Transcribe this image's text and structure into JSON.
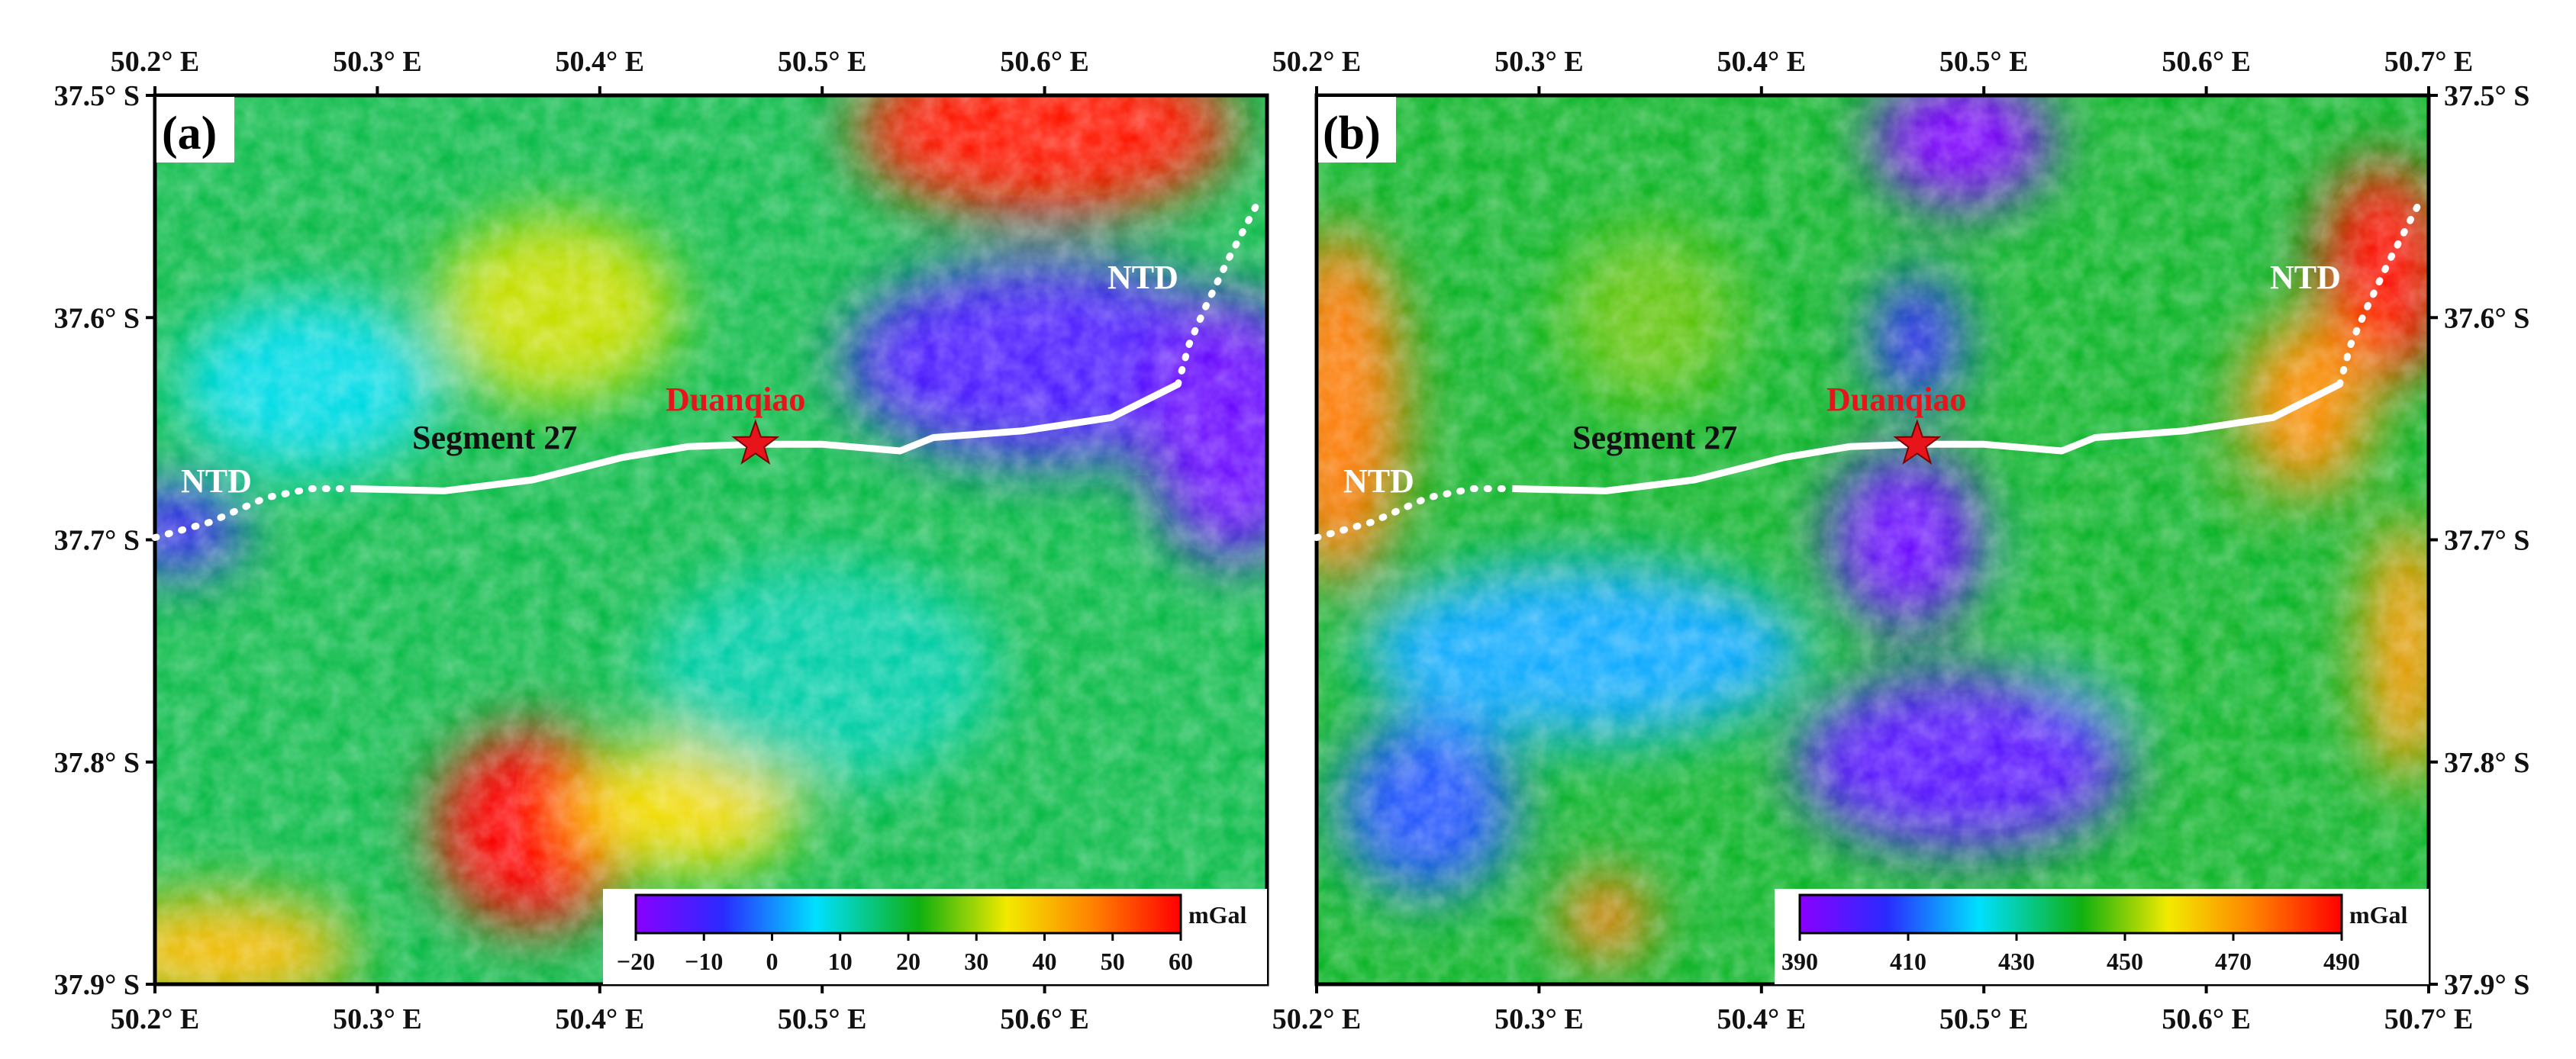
{
  "colors": {
    "fault": "#ffffff",
    "epicenter": "#e8141b",
    "epicenter_label": "#e8141b",
    "ntd_label": "#ffffff",
    "segment_label": "#111111",
    "colorbar_stops": [
      "#8a00ff",
      "#2a2aff",
      "#00e0ff",
      "#0fb010",
      "#f2ea00",
      "#ff8000",
      "#ff0000"
    ]
  },
  "map": {
    "lon_range": [
      50.2,
      50.7
    ],
    "lat_range": [
      37.5,
      37.9
    ],
    "lon_ticks": [
      50.2,
      50.3,
      50.4,
      50.5,
      50.6,
      50.7
    ],
    "lat_ticks": [
      37.5,
      37.6,
      37.7,
      37.8,
      37.9
    ],
    "fault_trace": [
      [
        50.288,
        37.677
      ],
      [
        50.33,
        37.678
      ],
      [
        50.37,
        37.673
      ],
      [
        50.41,
        37.663
      ],
      [
        50.44,
        37.658
      ],
      [
        50.47,
        37.657
      ],
      [
        50.5,
        37.657
      ],
      [
        50.535,
        37.66
      ],
      [
        50.55,
        37.654
      ],
      [
        50.59,
        37.651
      ],
      [
        50.63,
        37.645
      ],
      [
        50.66,
        37.63
      ]
    ],
    "ntd_west": [
      [
        50.2,
        37.699
      ],
      [
        50.225,
        37.692
      ],
      [
        50.25,
        37.681
      ],
      [
        50.27,
        37.677
      ],
      [
        50.288,
        37.677
      ]
    ],
    "ntd_east": [
      [
        50.66,
        37.63
      ],
      [
        50.665,
        37.612
      ],
      [
        50.672,
        37.596
      ],
      [
        50.682,
        37.575
      ],
      [
        50.696,
        37.548
      ]
    ],
    "epicenter": {
      "lon": 50.47,
      "lat": 37.657
    }
  },
  "panels": [
    {
      "id": "a",
      "label": "(a)",
      "labels": {
        "segment": "Segment 27",
        "epicenter": "Duanqiao",
        "ntd_west": "NTD",
        "ntd_east": "NTD"
      },
      "colorbar": {
        "unit": "mGal",
        "ticks": [
          "−20",
          "−10",
          "0",
          "10",
          "20",
          "30",
          "40",
          "50",
          "60"
        ],
        "range": [
          -20,
          60
        ]
      },
      "lat_tick_labels": [
        "37.5° S",
        "37.6° S",
        "37.7° S",
        "37.8° S",
        "37.9° S"
      ],
      "lon_tick_labels_top": [
        "50.2° E",
        "50.3° E",
        "50.4° E",
        "50.5° E",
        "50.6° E"
      ],
      "lon_tick_labels_bottom": [
        "50.2° E",
        "50.3° E",
        "50.4° E",
        "50.5° E",
        "50.6° E"
      ],
      "anomalies": [
        {
          "lon": 50.38,
          "lat": 37.596,
          "rl": 0.055,
          "rt": 0.042,
          "value": 32
        },
        {
          "lon": 50.6,
          "lat": 37.515,
          "rl": 0.085,
          "rt": 0.04,
          "value": 58
        },
        {
          "lon": 50.37,
          "lat": 37.83,
          "rl": 0.045,
          "rt": 0.045,
          "value": 60
        },
        {
          "lon": 50.44,
          "lat": 37.82,
          "rl": 0.05,
          "rt": 0.03,
          "value": 36
        },
        {
          "lon": 50.23,
          "lat": 37.885,
          "rl": 0.06,
          "rt": 0.025,
          "value": 40
        },
        {
          "lon": 50.6,
          "lat": 37.62,
          "rl": 0.09,
          "rt": 0.045,
          "value": -12
        },
        {
          "lon": 50.685,
          "lat": 37.65,
          "rl": 0.04,
          "rt": 0.06,
          "value": -16
        },
        {
          "lon": 50.21,
          "lat": 37.695,
          "rl": 0.03,
          "rt": 0.02,
          "value": -10
        },
        {
          "lon": 50.27,
          "lat": 37.63,
          "rl": 0.06,
          "rt": 0.04,
          "value": 8
        },
        {
          "lon": 50.5,
          "lat": 37.76,
          "rl": 0.08,
          "rt": 0.05,
          "value": 12
        }
      ],
      "background_value": 18
    },
    {
      "id": "b",
      "label": "(b)",
      "labels": {
        "segment": "Segment 27",
        "epicenter": "Duanqiao",
        "ntd_west": "NTD",
        "ntd_east": "NTD"
      },
      "colorbar": {
        "unit": "mGal",
        "ticks": [
          "390",
          "410",
          "430",
          "450",
          "470",
          "490"
        ],
        "range": [
          390,
          490
        ]
      },
      "lat_tick_labels": [
        "37.5° S",
        "37.6° S",
        "37.7° S",
        "37.8° S",
        "37.9° S"
      ],
      "lon_tick_labels_top": [
        "50.2° E",
        "50.3° E",
        "50.4° E",
        "50.5° E",
        "50.6° E",
        "50.7° E"
      ],
      "lon_tick_labels_bottom": [
        "50.2° E",
        "50.3° E",
        "50.4° E",
        "50.5° E",
        "50.6° E",
        "50.7° E"
      ],
      "anomalies": [
        {
          "lon": 50.49,
          "lat": 37.52,
          "rl": 0.04,
          "rt": 0.03,
          "value": 392
        },
        {
          "lon": 50.47,
          "lat": 37.61,
          "rl": 0.02,
          "rt": 0.03,
          "value": 405
        },
        {
          "lon": 50.465,
          "lat": 37.7,
          "rl": 0.035,
          "rt": 0.04,
          "value": 395
        },
        {
          "lon": 50.49,
          "lat": 37.8,
          "rl": 0.075,
          "rt": 0.04,
          "value": 398
        },
        {
          "lon": 50.32,
          "lat": 37.75,
          "rl": 0.1,
          "rt": 0.04,
          "value": 418
        },
        {
          "lon": 50.25,
          "lat": 37.82,
          "rl": 0.04,
          "rt": 0.04,
          "value": 410
        },
        {
          "lon": 50.21,
          "lat": 37.64,
          "rl": 0.03,
          "rt": 0.08,
          "value": 475
        },
        {
          "lon": 50.68,
          "lat": 37.58,
          "rl": 0.03,
          "rt": 0.05,
          "value": 488
        },
        {
          "lon": 50.645,
          "lat": 37.64,
          "rl": 0.03,
          "rt": 0.04,
          "value": 472
        },
        {
          "lon": 50.33,
          "lat": 37.87,
          "rl": 0.02,
          "rt": 0.02,
          "value": 475
        },
        {
          "lon": 50.69,
          "lat": 37.75,
          "rl": 0.02,
          "rt": 0.06,
          "value": 470
        },
        {
          "lon": 50.35,
          "lat": 37.6,
          "rl": 0.04,
          "rt": 0.04,
          "value": 448
        },
        {
          "lon": 50.57,
          "lat": 37.72,
          "rl": 0.05,
          "rt": 0.06,
          "value": 440
        }
      ],
      "background_value": 440
    }
  ]
}
